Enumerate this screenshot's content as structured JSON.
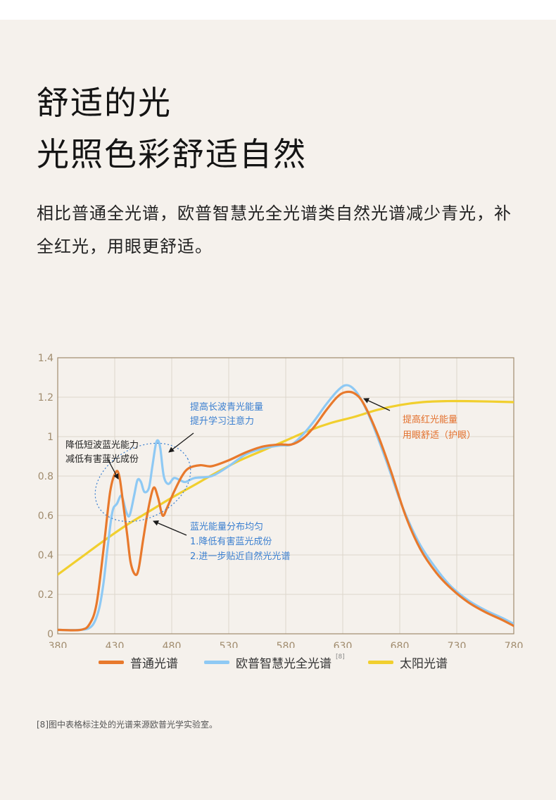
{
  "header": {
    "title_line1": "舒适的光",
    "title_line2": "光照色彩舒适自然",
    "description": "相比普通全光谱，欧普智慧光全光谱类自然光谱减少青光，补全红光，用眼更舒适。"
  },
  "colors": {
    "background": "#f5f1ec",
    "regular": "#e8792c",
    "opple": "#8ec9f4",
    "sun": "#f1cf2e",
    "annotation_blue": "#3a7fd0",
    "annotation_orange": "#e3702c",
    "axis": "#a08b6d"
  },
  "chart_data": {
    "type": "line",
    "xlim": [
      380,
      780
    ],
    "ylim": [
      0,
      1.4
    ],
    "x_ticks": [
      "380",
      "430",
      "480",
      "530",
      "580",
      "630",
      "680",
      "730",
      "780"
    ],
    "y_ticks": [
      "0",
      "0.2",
      "0.4",
      "0.6",
      "0.8",
      "1",
      "1.2",
      "1.4"
    ],
    "grid": true,
    "series": [
      {
        "name": "普通光谱",
        "color": "#e8792c",
        "points": [
          [
            380,
            0.02
          ],
          [
            400,
            0.02
          ],
          [
            408,
            0.05
          ],
          [
            414,
            0.15
          ],
          [
            420,
            0.42
          ],
          [
            426,
            0.72
          ],
          [
            431,
            0.82
          ],
          [
            434,
            0.8
          ],
          [
            437,
            0.68
          ],
          [
            441,
            0.5
          ],
          [
            444,
            0.36
          ],
          [
            448,
            0.3
          ],
          [
            451,
            0.33
          ],
          [
            455,
            0.48
          ],
          [
            459,
            0.62
          ],
          [
            464,
            0.74
          ],
          [
            468,
            0.69
          ],
          [
            472,
            0.6
          ],
          [
            476,
            0.64
          ],
          [
            482,
            0.72
          ],
          [
            489,
            0.8
          ],
          [
            495,
            0.84
          ],
          [
            505,
            0.855
          ],
          [
            515,
            0.85
          ],
          [
            530,
            0.88
          ],
          [
            545,
            0.92
          ],
          [
            560,
            0.95
          ],
          [
            575,
            0.96
          ],
          [
            585,
            0.96
          ],
          [
            595,
            0.99
          ],
          [
            605,
            1.05
          ],
          [
            615,
            1.13
          ],
          [
            625,
            1.2
          ],
          [
            632,
            1.225
          ],
          [
            640,
            1.22
          ],
          [
            648,
            1.17
          ],
          [
            660,
            1.02
          ],
          [
            672,
            0.83
          ],
          [
            685,
            0.6
          ],
          [
            698,
            0.43
          ],
          [
            712,
            0.31
          ],
          [
            725,
            0.23
          ],
          [
            740,
            0.16
          ],
          [
            755,
            0.11
          ],
          [
            770,
            0.07
          ],
          [
            780,
            0.04
          ]
        ]
      },
      {
        "name": "欧普智慧光全光谱",
        "color": "#8ec9f4",
        "points": [
          [
            380,
            0.02
          ],
          [
            400,
            0.02
          ],
          [
            410,
            0.04
          ],
          [
            416,
            0.12
          ],
          [
            420,
            0.25
          ],
          [
            424,
            0.45
          ],
          [
            428,
            0.62
          ],
          [
            432,
            0.66
          ],
          [
            436,
            0.7
          ],
          [
            440,
            0.62
          ],
          [
            443,
            0.6
          ],
          [
            447,
            0.7
          ],
          [
            450,
            0.78
          ],
          [
            453,
            0.77
          ],
          [
            456,
            0.72
          ],
          [
            460,
            0.74
          ],
          [
            463,
            0.85
          ],
          [
            466,
            0.96
          ],
          [
            468,
            0.98
          ],
          [
            470,
            0.94
          ],
          [
            473,
            0.8
          ],
          [
            477,
            0.76
          ],
          [
            482,
            0.79
          ],
          [
            487,
            0.78
          ],
          [
            492,
            0.77
          ],
          [
            500,
            0.79
          ],
          [
            515,
            0.8
          ],
          [
            530,
            0.85
          ],
          [
            545,
            0.91
          ],
          [
            560,
            0.94
          ],
          [
            575,
            0.955
          ],
          [
            585,
            0.96
          ],
          [
            595,
            1.01
          ],
          [
            605,
            1.08
          ],
          [
            615,
            1.16
          ],
          [
            625,
            1.23
          ],
          [
            632,
            1.26
          ],
          [
            638,
            1.25
          ],
          [
            645,
            1.2
          ],
          [
            655,
            1.08
          ],
          [
            668,
            0.88
          ],
          [
            682,
            0.65
          ],
          [
            697,
            0.46
          ],
          [
            712,
            0.33
          ],
          [
            725,
            0.24
          ],
          [
            740,
            0.17
          ],
          [
            755,
            0.12
          ],
          [
            770,
            0.08
          ],
          [
            780,
            0.05
          ]
        ]
      },
      {
        "name": "太阳光谱",
        "color": "#f1cf2e",
        "points": [
          [
            380,
            0.3
          ],
          [
            400,
            0.385
          ],
          [
            420,
            0.47
          ],
          [
            440,
            0.55
          ],
          [
            460,
            0.62
          ],
          [
            480,
            0.69
          ],
          [
            500,
            0.755
          ],
          [
            520,
            0.82
          ],
          [
            540,
            0.88
          ],
          [
            560,
            0.93
          ],
          [
            580,
            0.98
          ],
          [
            600,
            1.03
          ],
          [
            620,
            1.07
          ],
          [
            640,
            1.1
          ],
          [
            660,
            1.135
          ],
          [
            680,
            1.16
          ],
          [
            700,
            1.175
          ],
          [
            720,
            1.18
          ],
          [
            740,
            1.18
          ],
          [
            760,
            1.178
          ],
          [
            780,
            1.175
          ]
        ]
      }
    ],
    "annotations": [
      {
        "id": "red",
        "lines": [
          "提高红光能量",
          "用眼舒适（护眼）"
        ],
        "color": "#e3702c"
      },
      {
        "id": "longwave",
        "lines": [
          "提高长波青光能量",
          "提升学习注意力"
        ],
        "color": "#3a7fd0"
      },
      {
        "id": "shortwave",
        "lines": [
          "降低短波蓝光能力",
          "减低有害蓝光成份"
        ],
        "color": "#222222"
      },
      {
        "id": "distribution",
        "lines": [
          "蓝光能量分布均匀",
          "1.降低有害蓝光成份",
          "2.进一步贴近自然光光谱"
        ],
        "color": "#3a7fd0"
      }
    ]
  },
  "legend": {
    "items": [
      {
        "label": "普通光谱",
        "color": "#e8792c"
      },
      {
        "label": "欧普智慧光全光谱",
        "color": "#8ec9f4",
        "sup": "[8]"
      },
      {
        "label": "太阳光谱",
        "color": "#f1cf2e"
      }
    ]
  },
  "footnote": "[8]图中表格标注处的光谱来源欧普光学实验室。"
}
